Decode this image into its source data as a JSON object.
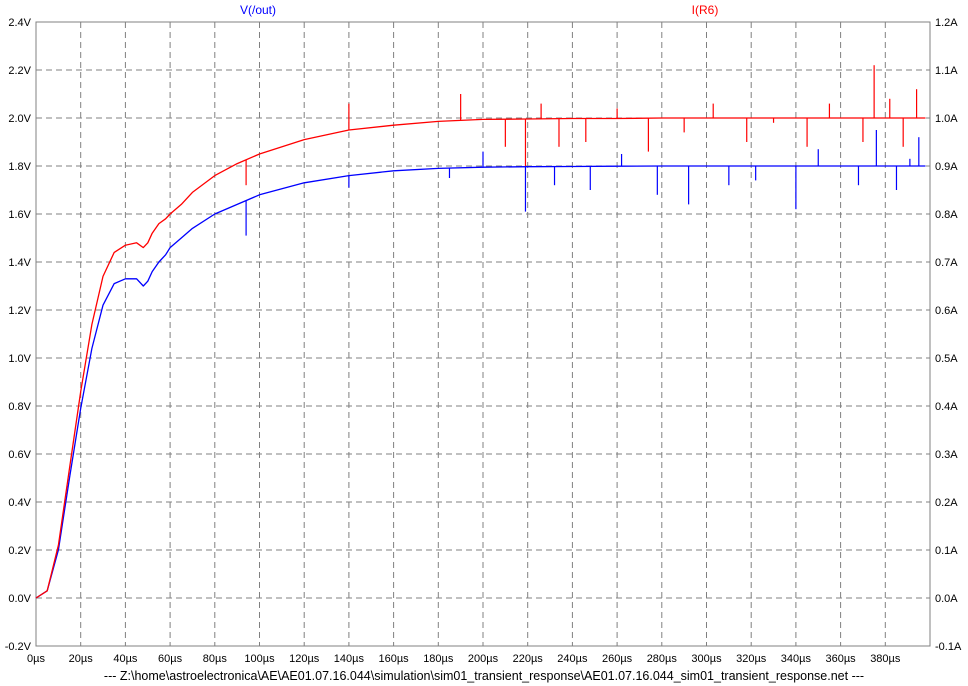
{
  "chart_data": {
    "type": "line",
    "title": "",
    "x_tick_labels": [
      "0µs",
      "20µs",
      "40µs",
      "60µs",
      "80µs",
      "100µs",
      "120µs",
      "140µs",
      "160µs",
      "180µs",
      "200µs",
      "220µs",
      "240µs",
      "260µs",
      "280µs",
      "300µs",
      "320µs",
      "340µs",
      "360µs",
      "380µs"
    ],
    "xlim": [
      0,
      400
    ],
    "x_unit": "µs",
    "left_axis": {
      "ylim": [
        -0.2,
        2.4
      ],
      "tick_values": [
        -0.2,
        0.0,
        0.2,
        0.4,
        0.6,
        0.8,
        1.0,
        1.2,
        1.4,
        1.6,
        1.8,
        2.0,
        2.2,
        2.4
      ],
      "tick_labels": [
        "-0.2V",
        "0.0V",
        "0.2V",
        "0.4V",
        "0.6V",
        "0.8V",
        "1.0V",
        "1.2V",
        "1.4V",
        "1.6V",
        "1.8V",
        "2.0V",
        "2.2V",
        "2.4V"
      ]
    },
    "right_axis": {
      "ylim": [
        -0.1,
        1.2
      ],
      "tick_values": [
        -0.1,
        0.0,
        0.1,
        0.2,
        0.3,
        0.4,
        0.5,
        0.6,
        0.7,
        0.8,
        0.9,
        1.0,
        1.1,
        1.2
      ],
      "tick_labels": [
        "-0.1A",
        "0.0A",
        "0.1A",
        "0.2A",
        "0.3A",
        "0.4A",
        "0.5A",
        "0.6A",
        "0.7A",
        "0.8A",
        "0.9A",
        "1.0A",
        "1.1A",
        "1.2A"
      ]
    },
    "grid": true,
    "series": [
      {
        "name": "V(/out)",
        "axis": "left",
        "color": "#0000ff",
        "x": [
          0,
          5,
          10,
          15,
          20,
          25,
          30,
          35,
          40,
          45,
          48,
          50,
          52,
          55,
          58,
          60,
          65,
          70,
          80,
          90,
          100,
          120,
          140,
          160,
          180,
          200,
          220,
          240,
          260,
          280,
          300,
          320,
          340,
          360,
          380,
          398
        ],
        "values": [
          0,
          0.03,
          0.2,
          0.5,
          0.79,
          1.04,
          1.22,
          1.31,
          1.33,
          1.33,
          1.3,
          1.32,
          1.36,
          1.4,
          1.43,
          1.46,
          1.5,
          1.54,
          1.6,
          1.64,
          1.68,
          1.73,
          1.76,
          1.78,
          1.79,
          1.795,
          1.797,
          1.798,
          1.799,
          1.8,
          1.8,
          1.8,
          1.8,
          1.8,
          1.8,
          1.8
        ],
        "spikes": [
          [
            94,
            1.51
          ],
          [
            140,
            1.71
          ],
          [
            185,
            1.75
          ],
          [
            200,
            1.86
          ],
          [
            219,
            1.61
          ],
          [
            232,
            1.72
          ],
          [
            248,
            1.7
          ],
          [
            262,
            1.85
          ],
          [
            278,
            1.68
          ],
          [
            292,
            1.64
          ],
          [
            310,
            1.72
          ],
          [
            322,
            1.74
          ],
          [
            340,
            1.62
          ],
          [
            350,
            1.87
          ],
          [
            368,
            1.72
          ],
          [
            376,
            1.95
          ],
          [
            385,
            1.7
          ],
          [
            391,
            1.83
          ],
          [
            395,
            1.92
          ]
        ]
      },
      {
        "name": "I(R6)",
        "axis": "right",
        "color": "#ff0000",
        "x": [
          0,
          5,
          10,
          15,
          20,
          25,
          30,
          35,
          40,
          45,
          48,
          50,
          52,
          55,
          58,
          60,
          65,
          70,
          80,
          90,
          100,
          120,
          140,
          160,
          180,
          200,
          220,
          240,
          260,
          280,
          300,
          320,
          340,
          360,
          380,
          398
        ],
        "values": [
          0,
          0.015,
          0.11,
          0.27,
          0.43,
          0.57,
          0.67,
          0.72,
          0.735,
          0.74,
          0.73,
          0.74,
          0.76,
          0.78,
          0.79,
          0.8,
          0.82,
          0.845,
          0.88,
          0.905,
          0.925,
          0.955,
          0.975,
          0.985,
          0.993,
          0.997,
          0.998,
          0.999,
          0.999,
          1.0,
          1.0,
          1.0,
          1.0,
          1.0,
          1.0,
          1.0
        ],
        "spikes": [
          [
            94,
            0.86
          ],
          [
            140,
            1.03
          ],
          [
            190,
            1.05
          ],
          [
            210,
            0.94
          ],
          [
            219,
            0.9
          ],
          [
            226,
            1.03
          ],
          [
            234,
            0.94
          ],
          [
            246,
            0.95
          ],
          [
            260,
            1.02
          ],
          [
            274,
            0.93
          ],
          [
            290,
            0.97
          ],
          [
            303,
            1.03
          ],
          [
            318,
            0.95
          ],
          [
            330,
            0.99
          ],
          [
            345,
            0.94
          ],
          [
            355,
            1.03
          ],
          [
            370,
            0.95
          ],
          [
            375,
            1.11
          ],
          [
            382,
            1.04
          ],
          [
            388,
            0.94
          ],
          [
            394,
            1.06
          ]
        ]
      }
    ]
  },
  "footer": "---   Z:\\home\\astroelectronica\\AE\\AE01.07.16.044\\simulation\\sim01_transient_response\\AE01.07.16.044_sim01_transient_response.net   ---"
}
